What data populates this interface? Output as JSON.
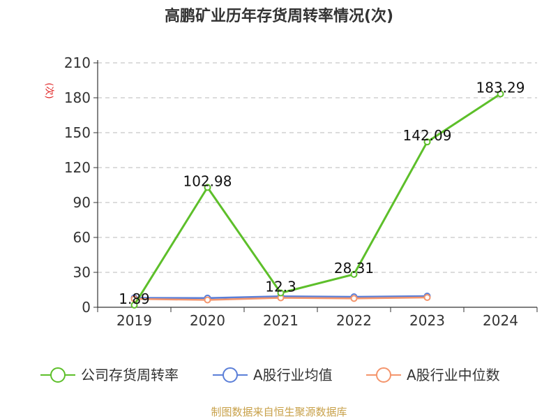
{
  "colors": {
    "company": "#5dbf2a",
    "industry_avg": "#5b7fd8",
    "industry_median": "#f4956c",
    "grid": "#c8c8c8",
    "axis": "#333333",
    "source": "#c8a14a",
    "unit": "#e02020"
  },
  "chart_data": {
    "type": "line",
    "title": "高鹏矿业历年存货周转率情况(次)",
    "ylabel": "(次)",
    "xlabel": "",
    "categories": [
      "2019",
      "2020",
      "2021",
      "2022",
      "2023",
      "2024"
    ],
    "ylim": [
      0,
      210
    ],
    "yticks": [
      0,
      30,
      60,
      90,
      120,
      150,
      180,
      210
    ],
    "grid": true,
    "legend_position": "bottom",
    "series": [
      {
        "name": "公司存货周转率",
        "color": "#5dbf2a",
        "values": [
          1.89,
          102.98,
          12.3,
          28.31,
          142.09,
          183.29
        ],
        "labels": [
          "1.89",
          "102.98",
          "12.3",
          "28.31",
          "142.09",
          "183.29"
        ]
      },
      {
        "name": "A股行业均值",
        "color": "#5b7fd8",
        "values": [
          8.1,
          7.9,
          9.4,
          9.0,
          9.6,
          null
        ]
      },
      {
        "name": "A股行业中位数",
        "color": "#f4956c",
        "values": [
          7.2,
          6.3,
          8.1,
          7.6,
          8.4,
          null
        ]
      }
    ],
    "source": "制图数据来自恒生聚源数据库"
  }
}
